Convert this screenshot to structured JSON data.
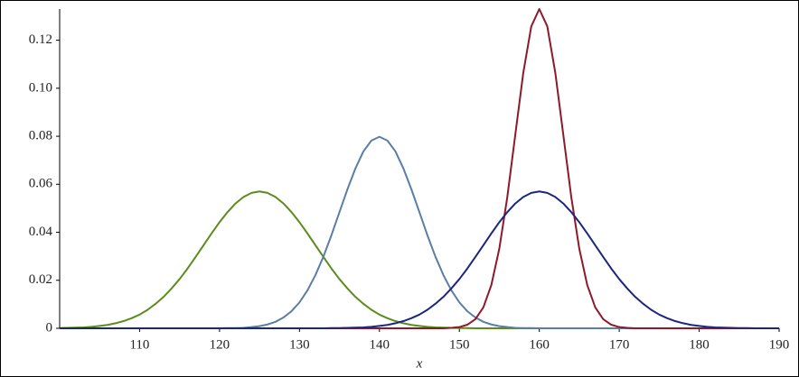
{
  "chart_data": {
    "type": "line",
    "x_label": "x",
    "x": [
      100,
      101,
      102,
      103,
      104,
      105,
      106,
      107,
      108,
      109,
      110,
      111,
      112,
      113,
      114,
      115,
      116,
      117,
      118,
      119,
      120,
      121,
      122,
      123,
      124,
      125,
      126,
      127,
      128,
      129,
      130,
      131,
      132,
      133,
      134,
      135,
      136,
      137,
      138,
      139,
      140,
      141,
      142,
      143,
      144,
      145,
      146,
      147,
      148,
      149,
      150,
      151,
      152,
      153,
      154,
      155,
      156,
      157,
      158,
      159,
      160,
      161,
      162,
      163,
      164,
      165,
      166,
      167,
      168,
      169,
      170,
      171,
      172,
      173,
      174,
      175,
      176,
      177,
      178,
      179,
      180,
      181,
      182,
      183,
      184,
      185,
      186,
      187,
      188,
      189,
      190
    ],
    "series": [
      {
        "color": "#5b8c1c",
        "values": [
          0.0001,
          0.0002,
          0.0003,
          0.0004,
          0.0006,
          0.001,
          0.0014,
          0.0021,
          0.003,
          0.0042,
          0.0057,
          0.0077,
          0.0102,
          0.0131,
          0.0166,
          0.0205,
          0.0249,
          0.0297,
          0.0346,
          0.0395,
          0.0442,
          0.0484,
          0.052,
          0.0547,
          0.0564,
          0.057,
          0.0564,
          0.0547,
          0.052,
          0.0484,
          0.0442,
          0.0395,
          0.0346,
          0.0297,
          0.0249,
          0.0205,
          0.0166,
          0.0131,
          0.0102,
          0.0077,
          0.0057,
          0.0042,
          0.003,
          0.0021,
          0.0014,
          0.001,
          0.0006,
          0.0004,
          0.0003,
          0.0002,
          0.0001,
          0.0001,
          0,
          0,
          0,
          0,
          0,
          0,
          0,
          0,
          0,
          0,
          0,
          0,
          0,
          0,
          0,
          0,
          0,
          0,
          0,
          0,
          0,
          0,
          0,
          0,
          0,
          0,
          0,
          0,
          0,
          0,
          0,
          0,
          0,
          0,
          0,
          0,
          0,
          0,
          0
        ]
      },
      {
        "color": "#5a7ea6",
        "values": [
          0,
          0,
          0,
          0,
          0,
          0,
          0,
          0,
          0,
          0,
          0,
          0,
          0,
          0,
          0,
          0,
          0,
          0,
          0,
          0,
          0,
          0.0001,
          0.0001,
          0.0002,
          0.0005,
          0.0009,
          0.0016,
          0.0027,
          0.0045,
          0.0071,
          0.0108,
          0.0158,
          0.0222,
          0.0299,
          0.0388,
          0.0484,
          0.0579,
          0.0666,
          0.0737,
          0.0782,
          0.0798,
          0.0782,
          0.0737,
          0.0666,
          0.0579,
          0.0484,
          0.0388,
          0.0299,
          0.0222,
          0.0158,
          0.0108,
          0.0071,
          0.0045,
          0.0027,
          0.0016,
          0.0009,
          0.0005,
          0.0002,
          0.0001,
          0.0001,
          0,
          0,
          0,
          0,
          0,
          0,
          0,
          0,
          0,
          0,
          0,
          0,
          0,
          0,
          0,
          0,
          0,
          0,
          0,
          0,
          0,
          0,
          0,
          0,
          0,
          0,
          0,
          0,
          0,
          0,
          0
        ]
      },
      {
        "color": "#8c1a2a",
        "values": [
          0,
          0,
          0,
          0,
          0,
          0,
          0,
          0,
          0,
          0,
          0,
          0,
          0,
          0,
          0,
          0,
          0,
          0,
          0,
          0,
          0,
          0,
          0,
          0,
          0,
          0,
          0,
          0,
          0,
          0,
          0,
          0,
          0,
          0,
          0,
          0,
          0,
          0,
          0,
          0,
          0,
          0,
          0,
          0,
          0,
          0,
          0,
          0,
          0,
          0.0002,
          0.0005,
          0.0015,
          0.0038,
          0.0087,
          0.018,
          0.0332,
          0.0547,
          0.0807,
          0.1065,
          0.1258,
          0.133,
          0.1258,
          0.1065,
          0.0807,
          0.0547,
          0.0332,
          0.018,
          0.0087,
          0.0038,
          0.0015,
          0.0005,
          0.0002,
          0,
          0,
          0,
          0,
          0,
          0,
          0,
          0,
          0,
          0,
          0,
          0,
          0,
          0,
          0,
          0,
          0,
          0,
          0
        ]
      },
      {
        "color": "#1c2580",
        "values": [
          0,
          0,
          0,
          0,
          0,
          0,
          0,
          0,
          0,
          0,
          0,
          0,
          0,
          0,
          0,
          0,
          0,
          0,
          0,
          0,
          0,
          0,
          0,
          0,
          0,
          0,
          0,
          0,
          0,
          0,
          0,
          0,
          0,
          0,
          0.0001,
          0.0001,
          0.0002,
          0.0003,
          0.0004,
          0.0006,
          0.001,
          0.0014,
          0.0021,
          0.003,
          0.0042,
          0.0057,
          0.0077,
          0.0102,
          0.0131,
          0.0166,
          0.0205,
          0.0249,
          0.0297,
          0.0346,
          0.0395,
          0.0442,
          0.0484,
          0.052,
          0.0547,
          0.0564,
          0.057,
          0.0564,
          0.0547,
          0.052,
          0.0484,
          0.0442,
          0.0395,
          0.0346,
          0.0297,
          0.0249,
          0.0205,
          0.0166,
          0.0131,
          0.0102,
          0.0077,
          0.0057,
          0.0042,
          0.003,
          0.0021,
          0.0014,
          0.001,
          0.0006,
          0.0004,
          0.0003,
          0.0002,
          0.0001,
          0.0001,
          0,
          0,
          0,
          0
        ]
      }
    ],
    "xlim": [
      100,
      190
    ],
    "xticks": [
      110,
      120,
      130,
      140,
      150,
      160,
      170,
      180,
      190
    ],
    "ylim": [
      0,
      0.133
    ],
    "yticks": [
      0,
      0.02,
      0.04,
      0.06,
      0.08,
      {
        "value": 0.1,
        "label": "0.10"
      },
      0.12
    ],
    "grid": false
  }
}
